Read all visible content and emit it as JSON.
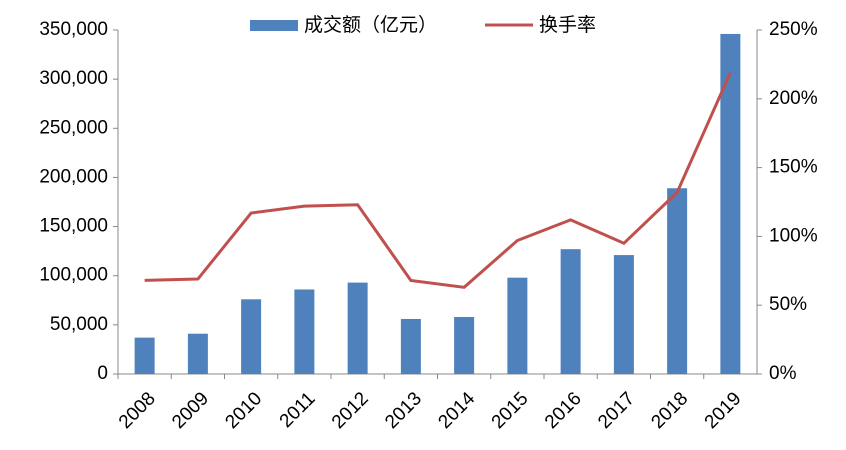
{
  "chart_data": {
    "type": "bar-line",
    "categories": [
      "2008",
      "2009",
      "2010",
      "2011",
      "2012",
      "2013",
      "2014",
      "2015",
      "2016",
      "2017",
      "2018",
      "2019"
    ],
    "series": [
      {
        "name": "成交额（亿元）",
        "type": "bar",
        "color": "#4f81bd",
        "values": [
          37000,
          41000,
          76000,
          86000,
          93000,
          56000,
          58000,
          98000,
          127000,
          121000,
          189000,
          346000
        ]
      },
      {
        "name": "换手率",
        "type": "line",
        "axis": "y2",
        "color": "#c0504d",
        "values": [
          68,
          69,
          117,
          122,
          123,
          68,
          63,
          97,
          112,
          95,
          132,
          219
        ]
      }
    ],
    "ylim": [
      0,
      350000
    ],
    "yticks": [
      0,
      {
        "value": 50000,
        "label": "50,000"
      },
      {
        "value": 100000,
        "label": "100,000"
      },
      {
        "value": 150000,
        "label": "150,000"
      },
      {
        "value": 200000,
        "label": "200,000"
      },
      {
        "value": 250000,
        "label": "250,000"
      },
      {
        "value": 300000,
        "label": "300,000"
      },
      {
        "value": 350000,
        "label": "350,000"
      }
    ],
    "y2lim": [
      0,
      250
    ],
    "y2ticks": [
      {
        "value": 0,
        "label": "0%"
      },
      {
        "value": 50,
        "label": "50%"
      },
      {
        "value": 100,
        "label": "100%"
      },
      {
        "value": 150,
        "label": "150%"
      },
      {
        "value": 200,
        "label": "200%"
      },
      {
        "value": 250,
        "label": "250%"
      }
    ],
    "legend": "top"
  }
}
